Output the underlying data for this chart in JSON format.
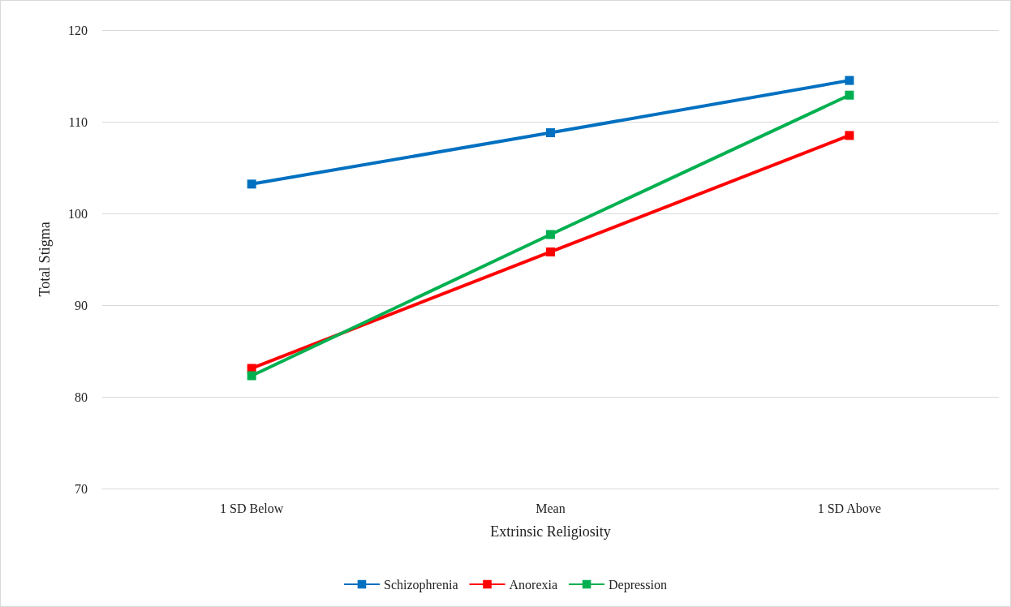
{
  "chart_data": {
    "type": "line",
    "xlabel": "Extrinsic Religiosity",
    "ylabel": "Total Stigma",
    "categories": [
      "1 SD Below",
      "Mean",
      "1 SD Above"
    ],
    "series": [
      {
        "name": "Schizophrenia",
        "color": "#0070c0",
        "values": [
          103.2,
          108.8,
          114.5
        ]
      },
      {
        "name": "Anorexia",
        "color": "#ff0000",
        "values": [
          83.1,
          95.8,
          108.5
        ]
      },
      {
        "name": "Depression",
        "color": "#00b050",
        "values": [
          82.3,
          97.7,
          112.9
        ]
      }
    ],
    "ylim": [
      70,
      120
    ],
    "yticks": [
      70,
      80,
      90,
      100,
      110,
      120
    ],
    "grid": "y",
    "legend": "bottom",
    "marker": "square",
    "line_style": "solid"
  }
}
